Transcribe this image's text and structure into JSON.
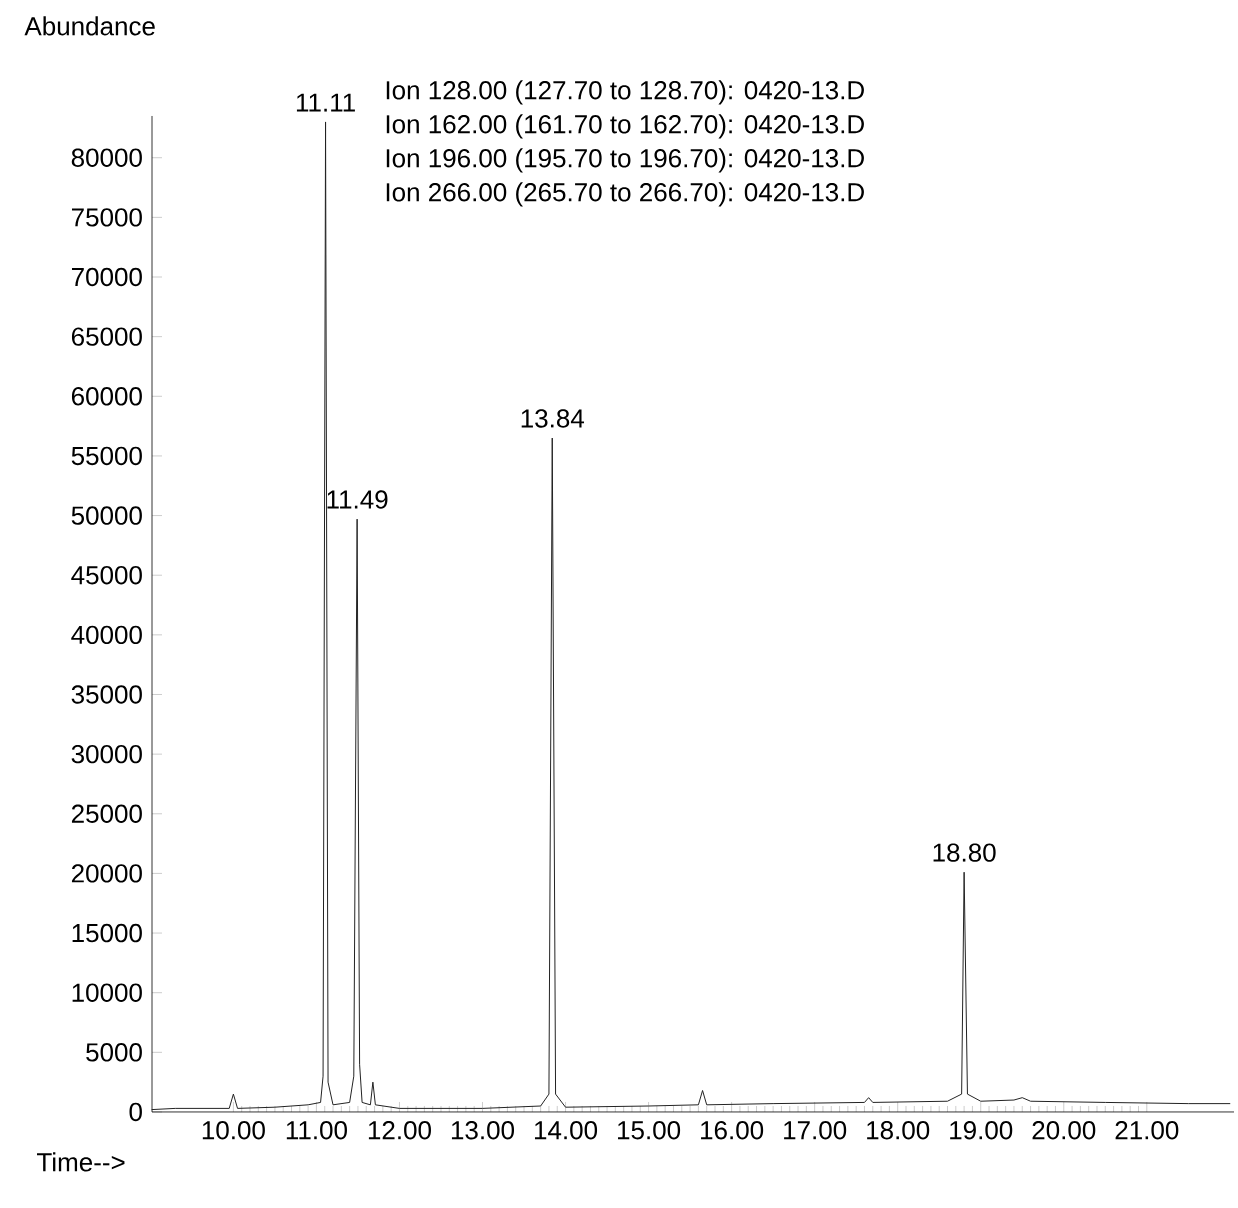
{
  "chart_data": {
    "type": "line",
    "xlabel": "Time-->",
    "ylabel": "Abundance",
    "color": "#222222",
    "marker": "none",
    "line_style": "solid",
    "grid": false,
    "xlim": [
      9.02,
      22.05
    ],
    "ylim": [
      0,
      83500
    ],
    "xticks": [
      {
        "value": 10,
        "label": "10.00"
      },
      {
        "value": 11,
        "label": "11.00"
      },
      {
        "value": 12,
        "label": "12.00"
      },
      {
        "value": 13,
        "label": "13.00"
      },
      {
        "value": 14,
        "label": "14.00"
      },
      {
        "value": 15,
        "label": "15.00"
      },
      {
        "value": 16,
        "label": "16.00"
      },
      {
        "value": 17,
        "label": "17.00"
      },
      {
        "value": 18,
        "label": "18.00"
      },
      {
        "value": 19,
        "label": "19.00"
      },
      {
        "value": 20,
        "label": "20.00"
      },
      {
        "value": 21,
        "label": "21.00"
      }
    ],
    "yticks": [
      0,
      5000,
      10000,
      15000,
      20000,
      25000,
      30000,
      35000,
      40000,
      45000,
      50000,
      55000,
      60000,
      65000,
      70000,
      75000,
      80000
    ],
    "x": [
      9.02,
      9.3,
      9.6,
      9.95,
      10.0,
      10.05,
      10.5,
      10.9,
      11.05,
      11.08,
      11.11,
      11.14,
      11.2,
      11.4,
      11.45,
      11.49,
      11.52,
      11.55,
      11.65,
      11.68,
      11.71,
      12.0,
      13.0,
      13.7,
      13.8,
      13.84,
      13.88,
      14.0,
      15.0,
      15.6,
      15.65,
      15.7,
      16.5,
      17.6,
      17.65,
      17.7,
      18.6,
      18.77,
      18.8,
      18.84,
      19.0,
      19.4,
      19.5,
      19.6,
      20.5,
      21.5,
      22.0
    ],
    "values": [
      200,
      300,
      300,
      300,
      1500,
      300,
      400,
      600,
      800,
      3000,
      83000,
      2500,
      600,
      800,
      3000,
      49700,
      4000,
      800,
      600,
      2500,
      600,
      300,
      300,
      500,
      1500,
      56500,
      1500,
      400,
      500,
      600,
      1800,
      600,
      700,
      800,
      1200,
      800,
      900,
      1500,
      20100,
      1500,
      900,
      1000,
      1200,
      900,
      800,
      700,
      700
    ],
    "annotations": [
      "Ion 128.00 (127.70 to 128.70): 0420-13.D",
      "Ion 162.00 (161.70 to 162.70): 0420-13.D",
      "Ion 196.00 (195.70 to 196.70): 0420-13.D",
      "Ion 266.00 (265.70 to 266.70): 0420-13.D",
      {
        "text": "11.11",
        "x": 11.11,
        "y": 83000
      },
      {
        "text": "11.49",
        "x": 11.49,
        "y": 49700
      },
      {
        "text": "13.84",
        "x": 13.84,
        "y": 56500
      },
      {
        "text": "18.80",
        "x": 18.8,
        "y": 20100
      }
    ]
  }
}
